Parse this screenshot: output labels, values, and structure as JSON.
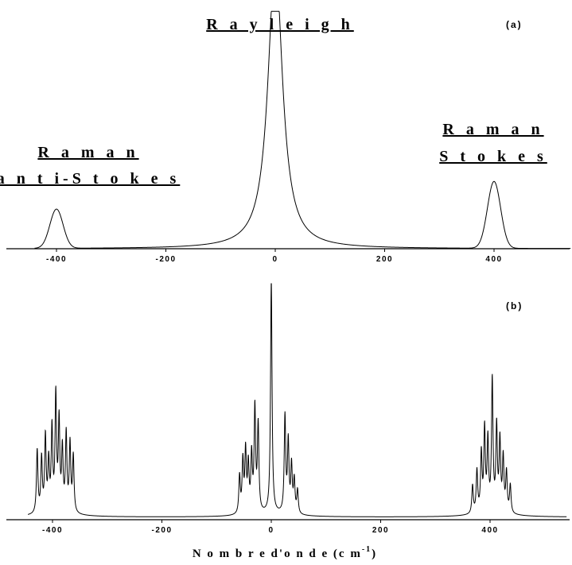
{
  "chart_data": [
    {
      "type": "line",
      "panel": "(a)",
      "xlabel": "",
      "ylabel": "",
      "xlim": [
        -445,
        540
      ],
      "x_ticks": [
        -400,
        -200,
        0,
        200,
        400
      ],
      "annotations": [
        {
          "text_lines": [
            "R a m a n",
            "a n t i-S t o k e s"
          ],
          "x": -400
        },
        {
          "text_lines": [
            "R a y l e i g h"
          ],
          "x": 0
        },
        {
          "text_lines": [
            "R a m a n",
            "S t o k e s"
          ],
          "x": 400
        }
      ],
      "peaks": [
        {
          "center": -400,
          "height": 0.17,
          "width": 12,
          "shape": "gaussian"
        },
        {
          "center": 0,
          "height": 1.0,
          "width": 16,
          "shape": "lorentzian_clipped"
        },
        {
          "center": 400,
          "height": 0.29,
          "width": 12,
          "shape": "gaussian"
        }
      ],
      "grid": false
    },
    {
      "type": "line",
      "panel": "(b)",
      "xlabel": "N o m b r e  d'o n d e  (c m",
      "xlabel_sup": "-1",
      "xlabel_close": ")",
      "xlim": [
        -445,
        540
      ],
      "x_ticks": [
        -400,
        -200,
        0,
        200,
        400
      ],
      "bands": [
        {
          "center": -393,
          "lines": [
            [
              -428,
              0.27
            ],
            [
              -420,
              0.23
            ],
            [
              -413,
              0.32
            ],
            [
              -407,
              0.21
            ],
            [
              -401,
              0.35
            ],
            [
              -394,
              0.49
            ],
            [
              -388,
              0.38
            ],
            [
              -382,
              0.26
            ],
            [
              -375,
              0.33
            ],
            [
              -368,
              0.29
            ],
            [
              -362,
              0.24
            ]
          ]
        },
        {
          "center": 0,
          "lines": [
            [
              -58,
              0.16
            ],
            [
              -52,
              0.22
            ],
            [
              -47,
              0.26
            ],
            [
              -42,
              0.2
            ],
            [
              -36,
              0.24
            ],
            [
              -30,
              0.44
            ],
            [
              -24,
              0.37
            ],
            [
              0,
              1.0
            ],
            [
              25,
              0.41
            ],
            [
              31,
              0.3
            ],
            [
              37,
              0.2
            ],
            [
              42,
              0.14
            ],
            [
              48,
              0.1
            ]
          ]
        },
        {
          "center": 405,
          "lines": [
            [
              368,
              0.12
            ],
            [
              376,
              0.18
            ],
            [
              384,
              0.25
            ],
            [
              390,
              0.35
            ],
            [
              396,
              0.3
            ],
            [
              404,
              0.56
            ],
            [
              412,
              0.36
            ],
            [
              418,
              0.3
            ],
            [
              424,
              0.23
            ],
            [
              430,
              0.17
            ],
            [
              437,
              0.12
            ]
          ]
        }
      ],
      "grid": false
    }
  ]
}
